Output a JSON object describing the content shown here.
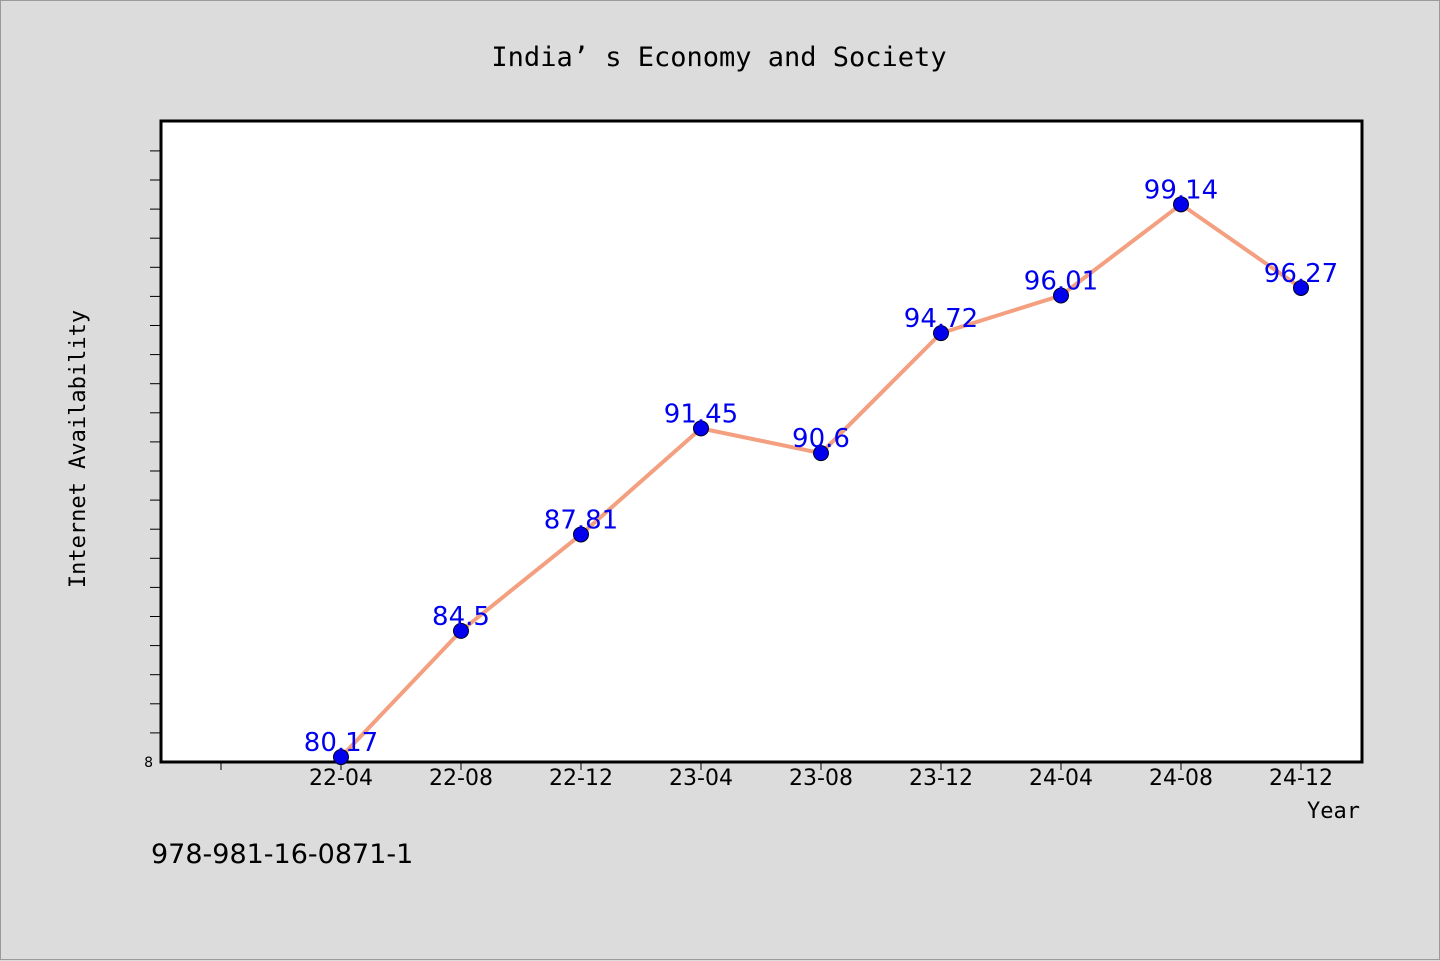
{
  "chart_data": {
    "type": "line",
    "title": "India’ s Economy and Society",
    "xlabel": "Year",
    "ylabel": "Internet Availability",
    "categories": [
      "22-04",
      "22-08",
      "22-12",
      "23-04",
      "23-08",
      "23-12",
      "24-04",
      "24-08",
      "24-12"
    ],
    "series": [
      {
        "values": [
          80.17,
          84.5,
          87.81,
          91.45,
          90.6,
          94.72,
          96.01,
          99.14,
          96.27
        ]
      }
    ],
    "data_labels": [
      "80.17",
      "84.5",
      "87.81",
      "91.45",
      "90.6",
      "94.72",
      "96.01",
      "99.14",
      "96.27"
    ],
    "y_tick_labels": [
      "8"
    ],
    "ylim": [
      80,
      102
    ],
    "grid": false,
    "line_color": "#f4a080",
    "marker_color": "#0000ee",
    "label_color": "#0000ee"
  },
  "footnote": "978-981-16-0871-1"
}
